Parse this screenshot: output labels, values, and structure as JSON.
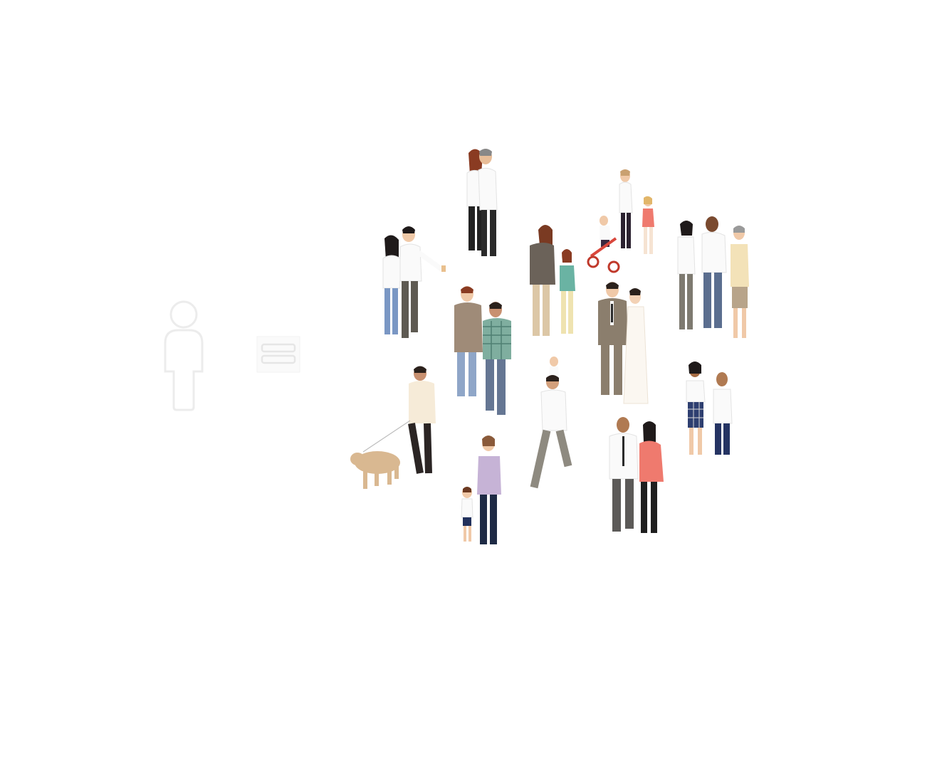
{
  "illustration": {
    "icons": {
      "single_person": "person-outline-icon",
      "equals": "equals-icon"
    },
    "colors": {
      "outline": "#ececec",
      "skin_light": "#f0c9a8",
      "skin_dark": "#7a4a2f",
      "hair_dark": "#2b211c",
      "white_shirt": "#fafafa",
      "khaki": "#8b7e6d",
      "denim": "#6f87a8",
      "coral": "#ef7a6e",
      "dog": "#d9b891"
    }
  }
}
